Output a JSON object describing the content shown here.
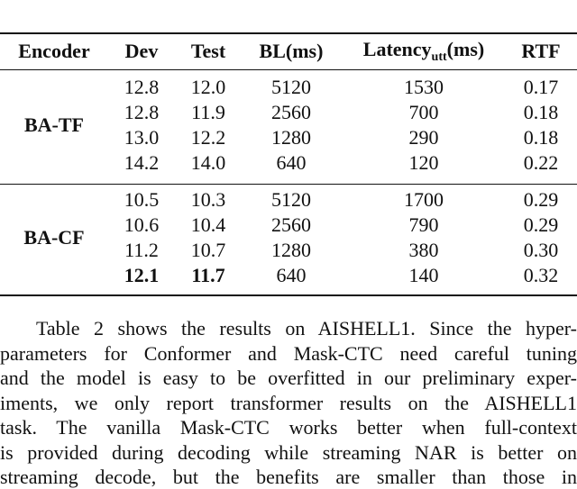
{
  "table": {
    "header": [
      "Encoder",
      "Dev",
      "Test",
      "BL(ms)",
      {
        "text": "Latency",
        "sub": "utt",
        "suffix": "(ms)"
      },
      "RTF"
    ],
    "groups": [
      {
        "encoder": "BA-TF",
        "rows": [
          [
            "12.8",
            "12.0",
            "5120",
            "1530",
            "0.17"
          ],
          [
            "12.8",
            "11.9",
            "2560",
            "700",
            "0.18"
          ],
          [
            "13.0",
            "12.2",
            "1280",
            "290",
            "0.18"
          ],
          [
            "14.2",
            "14.0",
            "640",
            "120",
            "0.22"
          ]
        ]
      },
      {
        "encoder": "BA-CF",
        "rows": [
          [
            "10.5",
            "10.3",
            "5120",
            "1700",
            "0.29"
          ],
          [
            "10.6",
            "10.4",
            "2560",
            "790",
            "0.29"
          ],
          [
            "11.2",
            "10.7",
            "1280",
            "380",
            "0.30"
          ],
          [
            "12.1",
            "11.7",
            "640",
            "140",
            "0.32"
          ]
        ]
      }
    ],
    "bold_cells": [
      {
        "group": 1,
        "row": 3,
        "col": 0
      },
      {
        "group": 1,
        "row": 3,
        "col": 1
      }
    ]
  },
  "paragraph": {
    "lines": [
      "Table 2 shows the results on AISHELL1. Since the hyper-",
      "parameters for Conformer and Mask-CTC need careful tuning",
      "and the model is easy to be overfitted in our preliminary exper-",
      "iments, we only report transformer results on the AISHELL1",
      "task. The vanilla Mask-CTC works better when full-context",
      "is provided during decoding while streaming NAR is better on",
      "streaming decode, but the benefits are smaller than those in"
    ]
  }
}
